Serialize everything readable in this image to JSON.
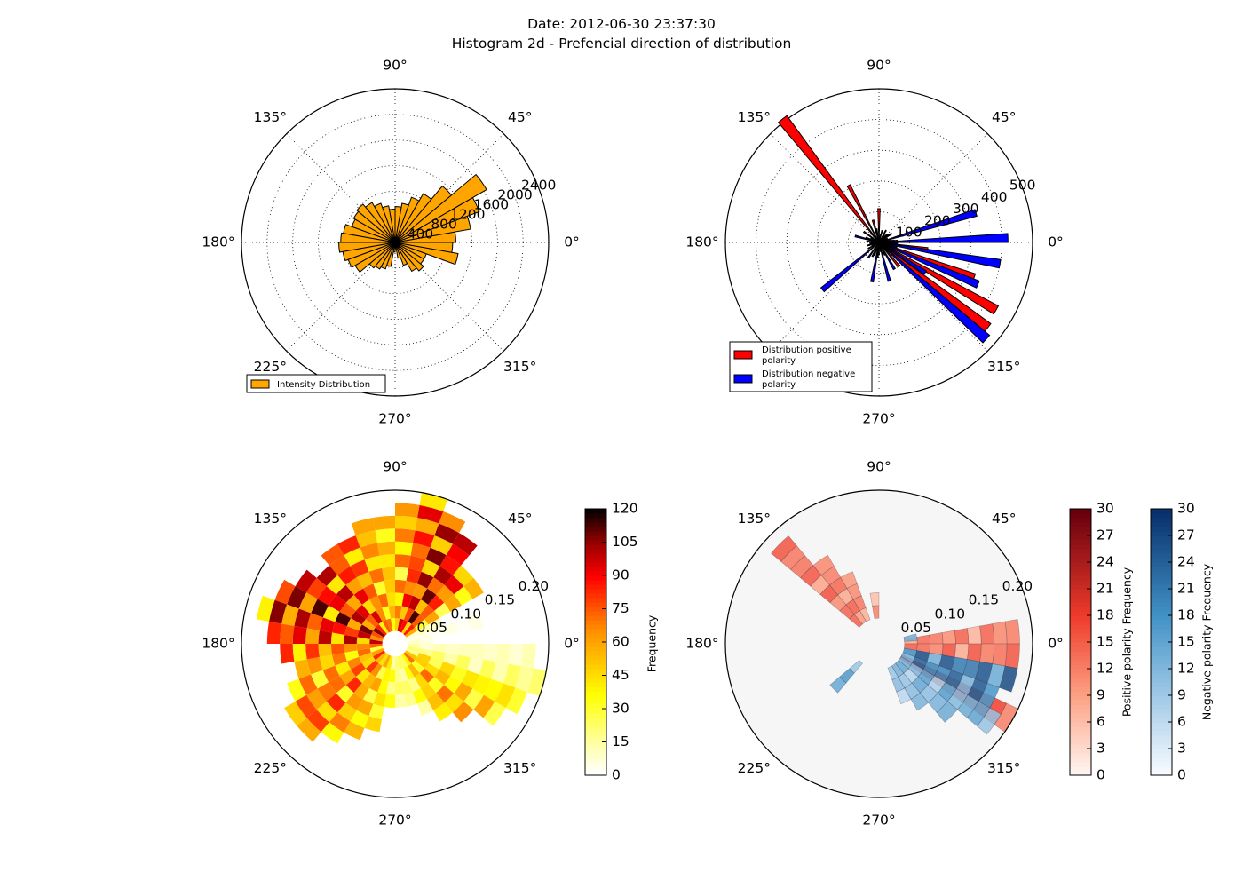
{
  "figure": {
    "title_line1": "Date: 2012-06-30 23:37:30",
    "title_line2": "Histogram 2d - Prefencial direction of distribution"
  },
  "chart_data": [
    {
      "type": "bar",
      "projection": "polar",
      "angle_tick_labels": [
        "0°",
        "45°",
        "90°",
        "135°",
        "180°",
        "225°",
        "270°",
        "315°"
      ],
      "radial_tick_labels": [
        "400",
        "800",
        "1200",
        "1600",
        "2000",
        "2400"
      ],
      "rlim": [
        0,
        2400
      ],
      "grid": true,
      "legend": [
        "Intensity Distribution"
      ],
      "legend_position": "lower-left",
      "colors": {
        "bar": "#ffa500",
        "edge": "#000000"
      },
      "bar_width_deg": 10,
      "series": [
        {
          "name": "Intensity Distribution",
          "angles_deg": [
            5,
            15,
            25,
            35,
            45,
            55,
            65,
            75,
            85,
            95,
            105,
            115,
            125,
            135,
            145,
            155,
            165,
            175,
            185,
            195,
            205,
            215,
            225,
            235,
            245,
            255,
            265,
            275,
            285,
            295,
            305,
            315,
            325,
            335,
            345,
            355
          ],
          "values": [
            950,
            1200,
            1400,
            1650,
            1150,
            880,
            750,
            620,
            560,
            520,
            580,
            650,
            720,
            780,
            750,
            720,
            820,
            850,
            880,
            830,
            780,
            720,
            520,
            480,
            440,
            380,
            150,
            120,
            250,
            380,
            520,
            580,
            520,
            520,
            1000,
            900
          ]
        }
      ]
    },
    {
      "type": "bar",
      "projection": "polar",
      "angle_tick_labels": [
        "0°",
        "45°",
        "90°",
        "135°",
        "180°",
        "225°",
        "270°",
        "315°"
      ],
      "radial_tick_labels": [
        "100",
        "200",
        "300",
        "400",
        "500"
      ],
      "rlim": [
        0,
        500
      ],
      "grid": true,
      "legend": [
        "Distribution positive\n polarity",
        "Distribution negative\n polarity"
      ],
      "legend_position": "lower-left",
      "colors": {
        "positive": "#ff0000",
        "negative": "#0000ff",
        "edge": "#000000"
      },
      "series": [
        {
          "name": "Distribution positive\n polarity",
          "angles_deg": [
            5,
            15,
            25,
            35,
            45,
            60,
            75,
            90,
            105,
            118,
            128,
            145,
            160,
            175,
            185,
            195,
            205,
            215,
            250,
            265,
            280,
            295,
            310,
            322,
            330,
            340,
            352
          ],
          "widths_deg": [
            4,
            4,
            4,
            4,
            4,
            4,
            4,
            4,
            4,
            3,
            4,
            4,
            4,
            4,
            4,
            4,
            4,
            4,
            4,
            4,
            4,
            4,
            4,
            4,
            4,
            4,
            4
          ],
          "values": [
            60,
            40,
            30,
            50,
            35,
            45,
            40,
            110,
            75,
            210,
            510,
            60,
            45,
            40,
            30,
            35,
            25,
            20,
            45,
            50,
            30,
            45,
            100,
            450,
            440,
            330,
            160
          ]
        },
        {
          "name": "Distribution negative\n polarity",
          "angles_deg": [
            2,
            7,
            17,
            40,
            55,
            80,
            100,
            130,
            150,
            165,
            180,
            195,
            210,
            220,
            235,
            245,
            260,
            270,
            285,
            300,
            315,
            318,
            327,
            337,
            345,
            350,
            358
          ],
          "widths_deg": [
            4,
            4,
            4,
            4,
            4,
            4,
            4,
            4,
            4,
            4,
            4,
            4,
            4,
            4,
            4,
            4,
            4,
            4,
            4,
            4,
            4,
            4,
            4,
            4,
            4,
            4,
            4
          ],
          "values": [
            420,
            50,
            330,
            40,
            30,
            25,
            45,
            40,
            30,
            80,
            25,
            40,
            40,
            240,
            60,
            50,
            130,
            40,
            130,
            100,
            30,
            470,
            180,
            350,
            60,
            400,
            60
          ]
        }
      ]
    },
    {
      "type": "heatmap",
      "projection": "polar",
      "angle_tick_labels": [
        "0°",
        "45°",
        "90°",
        "135°",
        "180°",
        "225°",
        "270°",
        "315°"
      ],
      "radial_tick_labels": [
        "0.05",
        "0.10",
        "0.15",
        "0.20"
      ],
      "rlim": [
        0,
        0.21
      ],
      "grid": false,
      "colormap": "hot_r",
      "colorbar": {
        "label": "Frequency",
        "ticks": [
          "0",
          "15",
          "30",
          "45",
          "60",
          "75",
          "90",
          "105",
          "120"
        ],
        "range": [
          0,
          120
        ]
      },
      "angular_bins_deg": 10,
      "radial_bins": 12,
      "sector_deg": [
        -35,
        145
      ],
      "radius_fraction": [
        0.25,
        0.55,
        0.3,
        0.65,
        0.7,
        0.8,
        0.95,
        0.98,
        0.9,
        0.85,
        0.8,
        0.78,
        0.75,
        0.7,
        0.78,
        0.85,
        0.9,
        0.82,
        0.75,
        0.7,
        0.72,
        0.8,
        0.82,
        0.78,
        0.7,
        0.62,
        0.45,
        0.4,
        0.42,
        0.5,
        0.6,
        0.7,
        0.82,
        0.92,
        0.98,
        0.95
      ],
      "frequency_level": [
        0.2,
        0.1,
        0.1,
        0.5,
        0.8,
        0.95,
        0.9,
        0.8,
        0.6,
        0.5,
        0.6,
        0.7,
        0.8,
        0.85,
        0.9,
        0.95,
        0.9,
        0.85,
        0.7,
        0.6,
        0.6,
        0.7,
        0.7,
        0.6,
        0.5,
        0.4,
        0.3,
        0.2,
        0.2,
        0.3,
        0.5,
        0.6,
        0.5,
        0.4,
        0.2,
        0.1
      ]
    },
    {
      "type": "heatmap",
      "projection": "polar",
      "angle_tick_labels": [
        "0°",
        "45°",
        "90°",
        "135°",
        "180°",
        "225°",
        "270°",
        "315°"
      ],
      "radial_tick_labels": [
        "0.05",
        "0.10",
        "0.15",
        "0.20"
      ],
      "rlim": [
        0,
        0.21
      ],
      "grid": false,
      "colormaps": [
        "Reds",
        "Blues"
      ],
      "colorbars": [
        {
          "label": "Positive polarity Frequency",
          "ticks": [
            "0",
            "3",
            "6",
            "9",
            "12",
            "15",
            "18",
            "21",
            "24",
            "27",
            "30"
          ],
          "range": [
            0,
            30
          ]
        },
        {
          "label": "Negative polarity Frequency",
          "ticks": [
            "0",
            "3",
            "6",
            "9",
            "12",
            "15",
            "18",
            "21",
            "24",
            "27",
            "30"
          ],
          "range": [
            0,
            30
          ]
        }
      ],
      "positive_sectors": [
        {
          "angle_deg": 135,
          "rmax": 0.2,
          "level": 0.55
        },
        {
          "angle_deg": 125,
          "rmax": 0.14,
          "level": 0.5
        },
        {
          "angle_deg": 115,
          "rmax": 0.1,
          "level": 0.45
        },
        {
          "angle_deg": 95,
          "rmax": 0.07,
          "level": 0.4
        },
        {
          "angle_deg": 5,
          "rmax": 0.2,
          "level": 0.5
        },
        {
          "angle_deg": 355,
          "rmax": 0.2,
          "level": 0.55
        },
        {
          "angle_deg": 330,
          "rmax": 0.21,
          "level": 0.65
        }
      ],
      "negative_sectors": [
        {
          "angle_deg": 345,
          "rmax": 0.2,
          "level": 0.9
        },
        {
          "angle_deg": 335,
          "rmax": 0.18,
          "level": 0.85
        },
        {
          "angle_deg": 325,
          "rmax": 0.2,
          "level": 0.55
        },
        {
          "angle_deg": 315,
          "rmax": 0.14,
          "level": 0.5
        },
        {
          "angle_deg": 305,
          "rmax": 0.11,
          "level": 0.45
        },
        {
          "angle_deg": 295,
          "rmax": 0.08,
          "level": 0.4
        },
        {
          "angle_deg": 225,
          "rmax": 0.08,
          "level": 0.6
        },
        {
          "angle_deg": 175,
          "rmax": 0.03,
          "level": 0.5
        },
        {
          "angle_deg": 10,
          "rmax": 0.05,
          "level": 0.45
        }
      ]
    }
  ]
}
